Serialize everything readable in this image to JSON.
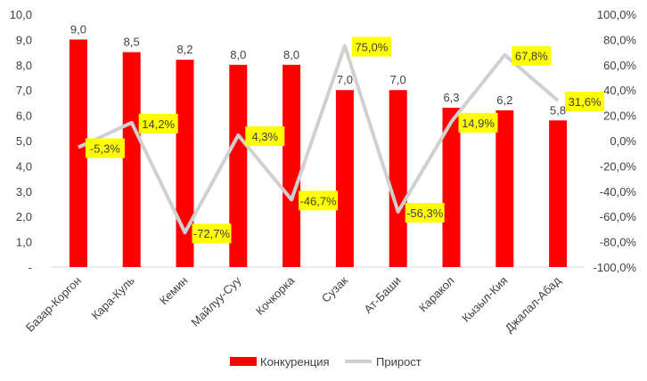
{
  "chart_data": {
    "type": "bar",
    "categories": [
      "Базар-Коргон",
      "Кара-Куль",
      "Кемин",
      "Майлуу-Суу",
      "Кочкорка",
      "Сузак",
      "Ат-Баши",
      "Каракол",
      "Кызыл-Кия",
      "Джалал-Абад"
    ],
    "series": [
      {
        "name": "Конкуренция",
        "type": "bar",
        "axis": "left",
        "color": "#ff0000",
        "values": [
          9.0,
          8.5,
          8.2,
          8.0,
          8.0,
          7.0,
          7.0,
          6.3,
          6.2,
          5.8
        ],
        "labels": [
          "9,0",
          "8,5",
          "8,2",
          "8,0",
          "8,0",
          "7,0",
          "7,0",
          "6,3",
          "6,2",
          "5,8"
        ]
      },
      {
        "name": "Прирост",
        "type": "line",
        "axis": "right",
        "color": "#d0d0d0",
        "values": [
          -5.3,
          14.2,
          -72.7,
          4.3,
          -46.7,
          75.0,
          -56.3,
          14.9,
          67.8,
          31.6
        ],
        "labels": [
          "-5,3%",
          "14,2%",
          "-72,7%",
          "4,3%",
          "-46,7%",
          "75,0%",
          "-56,3%",
          "14,9%",
          "67,8%",
          "31,6%"
        ],
        "label_bg": "#ffff00"
      }
    ],
    "y_left": {
      "ylim": [
        0,
        10
      ],
      "ticks": [
        "-",
        "1,0",
        "2,0",
        "3,0",
        "4,0",
        "5,0",
        "6,0",
        "7,0",
        "8,0",
        "9,0",
        "10,0"
      ]
    },
    "y_right": {
      "ylim": [
        -100,
        100
      ],
      "ticks": [
        "-100,0%",
        "-80,0%",
        "-60,0%",
        "-40,0%",
        "-20,0%",
        "0,0%",
        "20,0%",
        "40,0%",
        "60,0%",
        "80,0%",
        "100,0%"
      ]
    },
    "grid": false,
    "legend": "bottom"
  }
}
